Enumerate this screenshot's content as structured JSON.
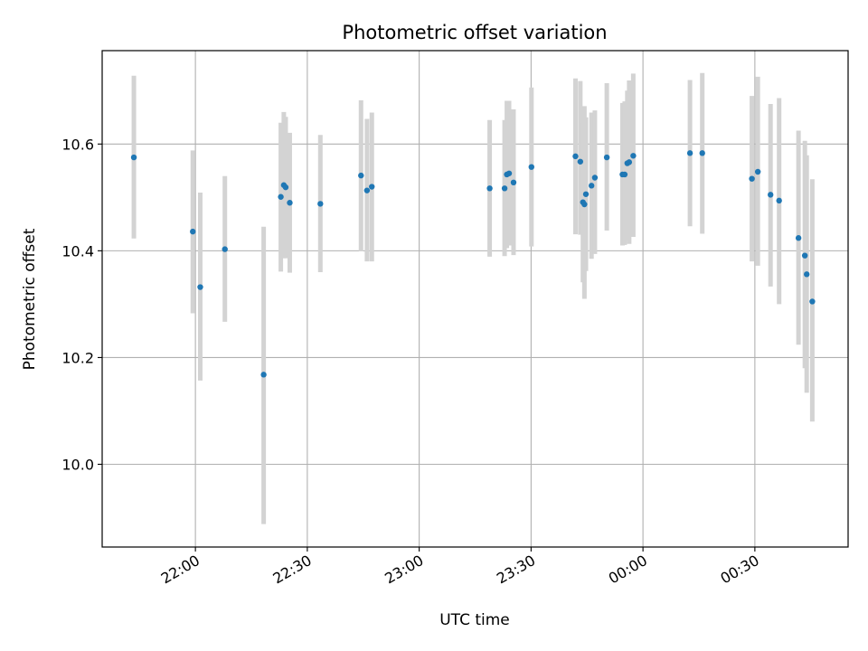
{
  "chart_data": {
    "type": "scatter",
    "title": "Photometric offset variation",
    "xlabel": "UTC time",
    "ylabel": "Photometric offset",
    "grid": true,
    "x_axis": {
      "unit": "minutes relative to 22:00 UTC",
      "xlim": [
        -25,
        175
      ],
      "ticks": [
        {
          "value": 0,
          "label": "22:00"
        },
        {
          "value": 30,
          "label": "22:30"
        },
        {
          "value": 60,
          "label": "23:00"
        },
        {
          "value": 90,
          "label": "23:30"
        },
        {
          "value": 120,
          "label": "00:00"
        },
        {
          "value": 150,
          "label": "00:30"
        }
      ]
    },
    "y_axis": {
      "ylim": [
        9.845,
        10.775
      ],
      "ticks": [
        {
          "value": 10.0,
          "label": "10.0"
        },
        {
          "value": 10.2,
          "label": "10.2"
        },
        {
          "value": 10.4,
          "label": "10.4"
        },
        {
          "value": 10.6,
          "label": "10.6"
        }
      ]
    },
    "colors": {
      "point": "#1f77b4",
      "errorbar": "#d3d3d3",
      "grid": "#b0b0b0"
    },
    "series": [
      {
        "marker": "point",
        "points": [
          {
            "x": -16.5,
            "y": 10.575,
            "lo": 10.423,
            "hi": 10.728
          },
          {
            "x": -0.7,
            "y": 10.436,
            "lo": 10.283,
            "hi": 10.588
          },
          {
            "x": 1.3,
            "y": 10.332,
            "lo": 10.157,
            "hi": 10.509
          },
          {
            "x": 7.9,
            "y": 10.403,
            "lo": 10.267,
            "hi": 10.54
          },
          {
            "x": 18.3,
            "y": 10.168,
            "lo": 9.888,
            "hi": 10.445
          },
          {
            "x": 22.9,
            "y": 10.501,
            "lo": 10.361,
            "hi": 10.64
          },
          {
            "x": 23.7,
            "y": 10.523,
            "lo": 10.386,
            "hi": 10.66
          },
          {
            "x": 24.2,
            "y": 10.519,
            "lo": 10.386,
            "hi": 10.651
          },
          {
            "x": 25.3,
            "y": 10.49,
            "lo": 10.359,
            "hi": 10.621
          },
          {
            "x": 33.5,
            "y": 10.488,
            "lo": 10.36,
            "hi": 10.617
          },
          {
            "x": 44.4,
            "y": 10.541,
            "lo": 10.399,
            "hi": 10.682
          },
          {
            "x": 46.0,
            "y": 10.513,
            "lo": 10.38,
            "hi": 10.647
          },
          {
            "x": 47.3,
            "y": 10.52,
            "lo": 10.38,
            "hi": 10.659
          },
          {
            "x": 78.9,
            "y": 10.517,
            "lo": 10.389,
            "hi": 10.645
          },
          {
            "x": 82.9,
            "y": 10.517,
            "lo": 10.39,
            "hi": 10.645
          },
          {
            "x": 83.5,
            "y": 10.543,
            "lo": 10.405,
            "hi": 10.681
          },
          {
            "x": 84.1,
            "y": 10.545,
            "lo": 10.41,
            "hi": 10.681
          },
          {
            "x": 85.3,
            "y": 10.528,
            "lo": 10.392,
            "hi": 10.665
          },
          {
            "x": 90.1,
            "y": 10.557,
            "lo": 10.408,
            "hi": 10.706
          },
          {
            "x": 101.9,
            "y": 10.577,
            "lo": 10.431,
            "hi": 10.723
          },
          {
            "x": 103.2,
            "y": 10.567,
            "lo": 10.43,
            "hi": 10.718
          },
          {
            "x": 103.9,
            "y": 10.491,
            "lo": 10.341,
            "hi": 10.641
          },
          {
            "x": 104.3,
            "y": 10.487,
            "lo": 10.31,
            "hi": 10.671
          },
          {
            "x": 104.7,
            "y": 10.506,
            "lo": 10.362,
            "hi": 10.65
          },
          {
            "x": 106.2,
            "y": 10.522,
            "lo": 10.385,
            "hi": 10.659
          },
          {
            "x": 107.1,
            "y": 10.537,
            "lo": 10.394,
            "hi": 10.663
          },
          {
            "x": 110.3,
            "y": 10.575,
            "lo": 10.438,
            "hi": 10.714
          },
          {
            "x": 114.5,
            "y": 10.543,
            "lo": 10.41,
            "hi": 10.677
          },
          {
            "x": 115.1,
            "y": 10.543,
            "lo": 10.411,
            "hi": 10.68
          },
          {
            "x": 115.8,
            "y": 10.564,
            "lo": 10.42,
            "hi": 10.7
          },
          {
            "x": 116.3,
            "y": 10.566,
            "lo": 10.413,
            "hi": 10.719
          },
          {
            "x": 117.4,
            "y": 10.578,
            "lo": 10.426,
            "hi": 10.732
          },
          {
            "x": 132.6,
            "y": 10.583,
            "lo": 10.446,
            "hi": 10.72
          },
          {
            "x": 135.9,
            "y": 10.583,
            "lo": 10.432,
            "hi": 10.733
          },
          {
            "x": 149.2,
            "y": 10.535,
            "lo": 10.38,
            "hi": 10.69
          },
          {
            "x": 150.8,
            "y": 10.548,
            "lo": 10.372,
            "hi": 10.726
          },
          {
            "x": 154.2,
            "y": 10.505,
            "lo": 10.333,
            "hi": 10.675
          },
          {
            "x": 156.5,
            "y": 10.494,
            "lo": 10.3,
            "hi": 10.686
          },
          {
            "x": 161.7,
            "y": 10.424,
            "lo": 10.224,
            "hi": 10.625
          },
          {
            "x": 163.4,
            "y": 10.391,
            "lo": 10.18,
            "hi": 10.606
          },
          {
            "x": 163.9,
            "y": 10.356,
            "lo": 10.134,
            "hi": 10.579
          },
          {
            "x": 165.4,
            "y": 10.305,
            "lo": 10.08,
            "hi": 10.534
          }
        ]
      }
    ]
  }
}
